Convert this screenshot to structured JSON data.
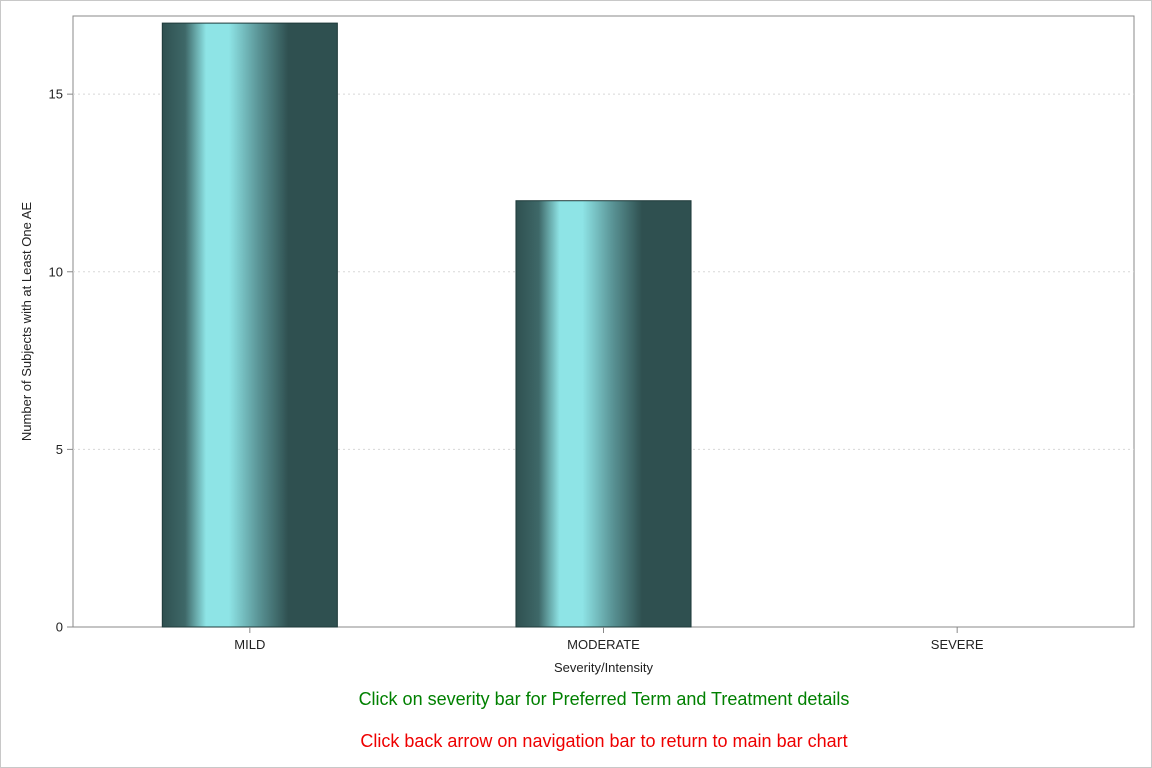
{
  "chart_data": {
    "type": "bar",
    "categories": [
      "MILD",
      "MODERATE",
      "SEVERE"
    ],
    "values": [
      17,
      12,
      0
    ],
    "xlabel": "Severity/Intensity",
    "ylabel": "Number of Subjects with at Least One AE",
    "ylim": [
      0,
      17.2
    ],
    "yticks": [
      0,
      5,
      10,
      15
    ],
    "grid": true
  },
  "notes": {
    "click_bar": "Click on severity bar for Preferred Term and Treatment details",
    "click_back": "Click back arrow on navigation bar to return to main bar chart"
  },
  "colors": {
    "bar_edge": "#2f5050",
    "bar_highlight": "#8ee4e6",
    "axis": "#888888",
    "grid": "#d8d8d8",
    "note_green": "#008000",
    "note_red": "#ee0000"
  }
}
